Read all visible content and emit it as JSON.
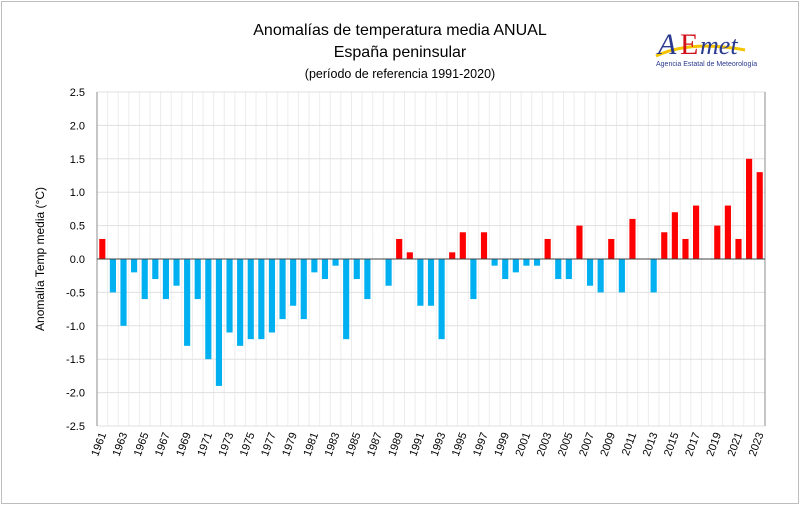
{
  "logo": {
    "text": "AEMet",
    "subtitle": "Agencia Estatal de Meteorología"
  },
  "chart_data": {
    "type": "bar",
    "title": "Anomalías de temperatura media ANUAL",
    "subtitle": "España peninsular",
    "note": "(período de referencia 1991-2020)",
    "xlabel": "",
    "ylabel": "Anomalía Temp media (°C)",
    "ylim": [
      -2.5,
      2.5
    ],
    "yticks": [
      "2.5",
      "2.0",
      "1.5",
      "1.0",
      "0.5",
      "0.0",
      "-0.5",
      "-1.0",
      "-1.5",
      "-2.0",
      "-2.5"
    ],
    "grid": true,
    "colors": {
      "positive": "#ff0000",
      "negative": "#00b0f0"
    },
    "categories": [
      1961,
      1962,
      1963,
      1964,
      1965,
      1966,
      1967,
      1968,
      1969,
      1970,
      1971,
      1972,
      1973,
      1974,
      1975,
      1976,
      1977,
      1978,
      1979,
      1980,
      1981,
      1982,
      1983,
      1984,
      1985,
      1986,
      1987,
      1988,
      1989,
      1990,
      1991,
      1992,
      1993,
      1994,
      1995,
      1996,
      1997,
      1998,
      1999,
      2000,
      2001,
      2002,
      2003,
      2004,
      2005,
      2006,
      2007,
      2008,
      2009,
      2010,
      2011,
      2012,
      2013,
      2014,
      2015,
      2016,
      2017,
      2018,
      2019,
      2020,
      2021,
      2022,
      2023
    ],
    "values": [
      0.3,
      -0.5,
      -1.0,
      -0.2,
      -0.6,
      -0.3,
      -0.6,
      -0.4,
      -1.3,
      -0.6,
      -1.5,
      -1.9,
      -1.1,
      -1.3,
      -1.2,
      -1.2,
      -1.1,
      -0.9,
      -0.7,
      -0.9,
      -0.2,
      -0.3,
      -0.1,
      -1.2,
      -0.3,
      -0.6,
      0.0,
      -0.4,
      0.3,
      0.1,
      -0.7,
      -0.7,
      -1.2,
      0.1,
      0.4,
      -0.6,
      0.4,
      -0.1,
      -0.3,
      -0.2,
      -0.1,
      -0.1,
      0.3,
      -0.3,
      -0.3,
      0.5,
      -0.4,
      -0.5,
      0.3,
      -0.5,
      0.6,
      0.0,
      -0.5,
      0.4,
      0.7,
      0.3,
      0.8,
      0.0,
      0.5,
      0.8,
      0.3,
      1.5,
      1.3
    ]
  }
}
